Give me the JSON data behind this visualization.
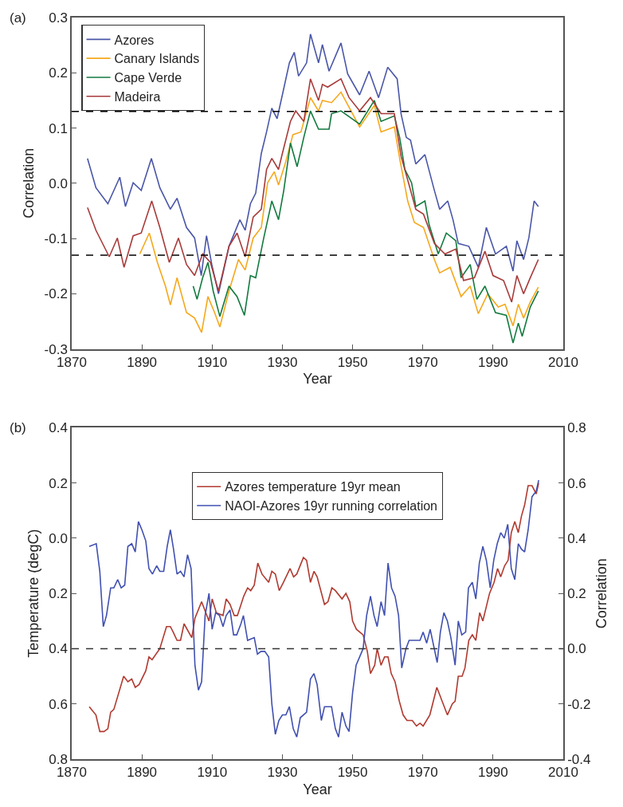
{
  "chart_data": [
    {
      "type": "line",
      "xlabel": "Year",
      "ylabel": "Correlation",
      "annotations": [
        "(a)"
      ],
      "xlim": [
        1870,
        2010
      ],
      "xticks": [
        1870,
        1890,
        1910,
        1930,
        1950,
        1970,
        1990,
        2010
      ],
      "ylim": [
        -0.3,
        0.3
      ],
      "yticks": [
        {
          "value": -0.3,
          "label": "-0.3"
        },
        {
          "value": -0.2,
          "label": "-0.2"
        },
        {
          "value": -0.1,
          "label": "-0.1"
        },
        {
          "value": 0,
          "label": "0.0"
        },
        {
          "value": 0.1,
          "label": "0.1"
        },
        {
          "value": 0.2,
          "label": "0.2"
        },
        {
          "value": 0.3,
          "label": "0.3"
        }
      ],
      "legend": "top left",
      "line_style": "solid",
      "marker": "none",
      "ref_lines": [
        {
          "axis": "y",
          "value": 0.13,
          "color": "#000000",
          "line_style": "dashed"
        },
        {
          "axis": "y",
          "value": -0.13,
          "color": "#000000",
          "line_style": "dashed"
        }
      ],
      "series": [
        {
          "name": "Azores",
          "color": "#4a56a8",
          "x": [
            1874.5,
            1876.9,
            1880.3,
            1883.7,
            1885.3,
            1887.5,
            1889.8,
            1892.7,
            1895.1,
            1898.1,
            1900,
            1902.7,
            1905,
            1906.9,
            1908.4,
            1909.9,
            1911.8,
            1914.8,
            1917.9,
            1919.4,
            1920.9,
            1922.4,
            1924,
            1925.5,
            1927,
            1928.5,
            1930,
            1932,
            1933.4,
            1934.6,
            1936.9,
            1938,
            1940.3,
            1941.4,
            1943.3,
            1946.7,
            1948.6,
            1952,
            1954.7,
            1957.4,
            1960,
            1962.7,
            1963.8,
            1965.3,
            1966.5,
            1968,
            1970.6,
            1973.3,
            1974.8,
            1977.1,
            1978.6,
            1980.1,
            1983.1,
            1985.8,
            1988.1,
            1990.7,
            1993.8,
            1995.7,
            1996.8,
            1998.7,
            2000.2,
            2001.7,
            2002.9
          ],
          "values": [
            0.045,
            -0.008,
            -0.037,
            0.011,
            -0.042,
            0.001,
            -0.013,
            0.045,
            -0.008,
            -0.047,
            -0.027,
            -0.08,
            -0.099,
            -0.167,
            -0.095,
            -0.147,
            -0.2,
            -0.114,
            -0.066,
            -0.085,
            -0.037,
            -0.018,
            0.054,
            0.093,
            0.136,
            0.117,
            0.16,
            0.218,
            0.237,
            0.194,
            0.218,
            0.27,
            0.218,
            0.251,
            0.203,
            0.254,
            0.198,
            0.16,
            0.203,
            0.155,
            0.21,
            0.189,
            0.126,
            0.083,
            0.078,
            0.035,
            0.052,
            -0.013,
            -0.047,
            -0.032,
            -0.066,
            -0.109,
            -0.114,
            -0.152,
            -0.08,
            -0.128,
            -0.114,
            -0.159,
            -0.104,
            -0.138,
            -0.099,
            -0.032,
            -0.042
          ]
        },
        {
          "name": "Canary Islands",
          "color": "#f5a81c",
          "x": [
            1889.4,
            1892.1,
            1894.4,
            1896.7,
            1898.1,
            1900,
            1902.7,
            1905,
            1907,
            1908.8,
            1910.7,
            1912.2,
            1914.8,
            1917.5,
            1919.4,
            1921.7,
            1924,
            1925.8,
            1927.7,
            1928.9,
            1930.8,
            1933,
            1935.3,
            1938,
            1940.3,
            1941.4,
            1944,
            1946.7,
            1952,
            1956.2,
            1958.1,
            1961.9,
            1963.4,
            1965.7,
            1967.6,
            1970.2,
            1973.3,
            1974.8,
            1977.8,
            1980.9,
            1983.5,
            1985.8,
            1988.5,
            1991.5,
            1993.4,
            1995.7,
            1997.2,
            1998.7,
            2000.6,
            2002.9
          ],
          "values": [
            -0.128,
            -0.09,
            -0.143,
            -0.186,
            -0.22,
            -0.171,
            -0.234,
            -0.244,
            -0.27,
            -0.205,
            -0.234,
            -0.26,
            -0.195,
            -0.138,
            -0.157,
            -0.099,
            -0.08,
            0.001,
            0.021,
            -0.003,
            0.035,
            0.088,
            0.093,
            0.155,
            0.131,
            0.15,
            0.146,
            0.165,
            0.102,
            0.141,
            0.093,
            0.102,
            0.045,
            -0.032,
            -0.071,
            -0.08,
            -0.138,
            -0.162,
            -0.152,
            -0.205,
            -0.186,
            -0.236,
            -0.2,
            -0.224,
            -0.219,
            -0.258,
            -0.219,
            -0.244,
            -0.215,
            -0.188
          ]
        },
        {
          "name": "Cape Verde",
          "color": "#127a3e",
          "x": [
            1904.6,
            1905.7,
            1907.3,
            1908.8,
            1910.3,
            1912.2,
            1914.8,
            1917.1,
            1919.2,
            1920.9,
            1922.4,
            1924.7,
            1927,
            1928.9,
            1930.4,
            1932.3,
            1934.2,
            1936.1,
            1938,
            1940.3,
            1943.3,
            1944,
            1946.7,
            1952,
            1956.2,
            1958.1,
            1961.9,
            1963.4,
            1964.9,
            1966.8,
            1968,
            1970.6,
            1971.8,
            1974.4,
            1976.7,
            1979.4,
            1980.9,
            1983.5,
            1985.4,
            1987.7,
            1990.7,
            1993.8,
            1995.7,
            1997.2,
            1998.3,
            2000.6,
            2002.9
          ],
          "values": [
            -0.186,
            -0.21,
            -0.171,
            -0.143,
            -0.195,
            -0.241,
            -0.186,
            -0.205,
            -0.239,
            -0.167,
            -0.171,
            -0.099,
            -0.032,
            -0.066,
            -0.013,
            0.073,
            0.03,
            0.083,
            0.131,
            0.098,
            0.098,
            0.126,
            0.131,
            0.107,
            0.15,
            0.112,
            0.122,
            0.083,
            0.025,
            0.001,
            -0.042,
            -0.032,
            -0.075,
            -0.128,
            -0.09,
            -0.104,
            -0.171,
            -0.147,
            -0.21,
            -0.186,
            -0.234,
            -0.239,
            -0.289,
            -0.253,
            -0.277,
            -0.224,
            -0.195
          ]
        },
        {
          "name": "Madeira",
          "color": "#a83a3a",
          "x": [
            1874.5,
            1876.9,
            1880.7,
            1883,
            1884.9,
            1887.5,
            1889.8,
            1892.8,
            1895.1,
            1897.8,
            1900.4,
            1902.7,
            1905,
            1907.3,
            1909.5,
            1911.8,
            1914.8,
            1917.1,
            1919.4,
            1921.7,
            1924,
            1925.5,
            1927,
            1928.9,
            1930,
            1932.3,
            1933.8,
            1936.1,
            1938,
            1940.3,
            1941.4,
            1942.9,
            1946.7,
            1949,
            1952,
            1955.1,
            1958.1,
            1961.9,
            1963.8,
            1966.1,
            1968,
            1970.2,
            1973.3,
            1976.3,
            1979.4,
            1981.6,
            1984.7,
            1987.7,
            1990,
            1993,
            1995.3,
            1996.8,
            1998.7,
            2000.6,
            2002.9
          ],
          "values": [
            -0.044,
            -0.085,
            -0.133,
            -0.099,
            -0.152,
            -0.095,
            -0.09,
            -0.032,
            -0.08,
            -0.143,
            -0.099,
            -0.147,
            -0.167,
            -0.128,
            -0.143,
            -0.195,
            -0.114,
            -0.09,
            -0.133,
            -0.061,
            -0.047,
            0.025,
            0.045,
            0.025,
            0.054,
            0.112,
            0.131,
            0.112,
            0.189,
            0.15,
            0.179,
            0.174,
            0.189,
            0.155,
            0.131,
            0.155,
            0.126,
            0.126,
            0.049,
            -0.003,
            -0.047,
            -0.056,
            -0.109,
            -0.128,
            -0.119,
            -0.176,
            -0.171,
            -0.123,
            -0.167,
            -0.176,
            -0.215,
            -0.167,
            -0.2,
            -0.171,
            -0.138
          ]
        }
      ]
    },
    {
      "type": "line",
      "xlabel": "Year",
      "ylabel": "Temperature (degC)",
      "y2label": "Correlation",
      "annotations": [
        "(b)"
      ],
      "xlim": [
        1870,
        2010
      ],
      "xticks": [
        1870,
        1890,
        1910,
        1930,
        1950,
        1970,
        1990,
        2010
      ],
      "ylim": [
        -0.8,
        0.4
      ],
      "yticks": [
        {
          "value": -0.8,
          "label": "0.8"
        },
        {
          "value": -0.6,
          "label": "0.6"
        },
        {
          "value": -0.4,
          "label": "0.4"
        },
        {
          "value": -0.2,
          "label": "0.2"
        },
        {
          "value": 0,
          "label": "0.0"
        },
        {
          "value": 0.2,
          "label": "0.2"
        },
        {
          "value": 0.4,
          "label": "0.4"
        }
      ],
      "y2lim": [
        -0.4,
        0.8
      ],
      "y2ticks": [
        -0.4,
        -0.2,
        {
          "value": 0,
          "label": "0.0"
        },
        0.2,
        0.4,
        0.6,
        0.8
      ],
      "legend": "top",
      "line_style": "solid",
      "marker": "none",
      "ref_lines": [
        {
          "axis": "y2",
          "value": 0,
          "color": "#333333",
          "line_style": "dashed"
        }
      ],
      "series": [
        {
          "name": "Azores temperature 19yr mean",
          "color": "#b03a30",
          "x": [
            1875,
            1876.9,
            1878,
            1879.2,
            1880.3,
            1881.1,
            1882,
            1884.8,
            1886,
            1887.1,
            1888.1,
            1889.2,
            1891.1,
            1892,
            1892.9,
            1895.1,
            1897,
            1898.1,
            1898.9,
            1900,
            1901,
            1902,
            1904.2,
            1905.1,
            1907,
            1909.1,
            1910,
            1911.2,
            1913.1,
            1914,
            1915.1,
            1916.3,
            1917.2,
            1919,
            1920.1,
            1921,
            1922,
            1923,
            1924.2,
            1926.1,
            1927,
            1928,
            1929.1,
            1930.3,
            1932.2,
            1933.2,
            1934.1,
            1936,
            1936.9,
            1938,
            1939,
            1939.9,
            1942,
            1943,
            1944.1,
            1945.1,
            1947,
            1948.1,
            1949.2,
            1950,
            1951.1,
            1953,
            1954.2,
            1955.1,
            1956.3,
            1957,
            1958.1,
            1959.1,
            1960.1,
            1961,
            1962.1,
            1963.3,
            1964.4,
            1965.5,
            1967,
            1968.2,
            1969.2,
            1970.1,
            1972,
            1974,
            1975.5,
            1977,
            1978.4,
            1979.2,
            1980.1,
            1981.2,
            1982,
            1983.1,
            1984.1,
            1985.1,
            1986.2,
            1987.1,
            1989,
            1990.3,
            1991.3,
            1992.2,
            1993.3,
            1994.3,
            1995.2,
            1996.2,
            1997.2,
            1998.1,
            1999,
            2000,
            2001.1,
            2002.3,
            2003
          ],
          "values": [
            -0.61,
            -0.64,
            -0.7,
            -0.7,
            -0.69,
            -0.63,
            -0.62,
            -0.5,
            -0.52,
            -0.51,
            -0.54,
            -0.53,
            -0.48,
            -0.43,
            -0.44,
            -0.4,
            -0.32,
            -0.32,
            -0.34,
            -0.37,
            -0.37,
            -0.31,
            -0.36,
            -0.29,
            -0.23,
            -0.3,
            -0.22,
            -0.27,
            -0.28,
            -0.22,
            -0.24,
            -0.28,
            -0.28,
            -0.21,
            -0.18,
            -0.19,
            -0.17,
            -0.09,
            -0.13,
            -0.16,
            -0.12,
            -0.13,
            -0.19,
            -0.16,
            -0.11,
            -0.14,
            -0.13,
            -0.07,
            -0.08,
            -0.16,
            -0.12,
            -0.14,
            -0.24,
            -0.23,
            -0.18,
            -0.19,
            -0.22,
            -0.2,
            -0.23,
            -0.3,
            -0.33,
            -0.35,
            -0.41,
            -0.49,
            -0.46,
            -0.4,
            -0.46,
            -0.43,
            -0.43,
            -0.49,
            -0.52,
            -0.59,
            -0.64,
            -0.66,
            -0.66,
            -0.68,
            -0.67,
            -0.68,
            -0.64,
            -0.54,
            -0.59,
            -0.64,
            -0.6,
            -0.59,
            -0.5,
            -0.5,
            -0.47,
            -0.37,
            -0.35,
            -0.37,
            -0.27,
            -0.3,
            -0.2,
            -0.16,
            -0.11,
            -0.14,
            -0.1,
            -0.08,
            0.02,
            0.06,
            0.02,
            0.08,
            0.12,
            0.19,
            0.19,
            0.16,
            0.2
          ]
        },
        {
          "name": "NAOI-Azores 19yr running correlation",
          "color": "#4050b0",
          "axis": "y2",
          "x": [
            1875,
            1877,
            1878,
            1879,
            1879.9,
            1881.1,
            1882,
            1883.1,
            1884.1,
            1885.1,
            1886,
            1887.1,
            1888.1,
            1889,
            1890,
            1891.1,
            1892,
            1893,
            1894.2,
            1895.1,
            1896.2,
            1897.2,
            1898.1,
            1899,
            1900,
            1901,
            1902,
            1903,
            1904,
            1905.1,
            1906.1,
            1907,
            1908,
            1909.1,
            1910,
            1911,
            1912.1,
            1913.1,
            1914,
            1915.1,
            1916.1,
            1917,
            1918.2,
            1918.9,
            1920.1,
            1922,
            1922.9,
            1923.9,
            1925,
            1926.1,
            1927,
            1928,
            1929,
            1930,
            1931,
            1932,
            1933.1,
            1934.1,
            1935.1,
            1936.9,
            1938,
            1939,
            1939.9,
            1941.1,
            1942,
            1943,
            1944,
            1945.1,
            1946,
            1947,
            1948.1,
            1949,
            1950,
            1951,
            1952,
            1953,
            1954,
            1955.1,
            1956.1,
            1957,
            1958.1,
            1959.1,
            1960.1,
            1961.1,
            1962.1,
            1963.1,
            1964,
            1965.2,
            1966.1,
            1967.2,
            1968.2,
            1969.2,
            1970.1,
            1971.1,
            1972.1,
            1973.1,
            1974.1,
            1975,
            1976,
            1977,
            1978,
            1979.2,
            1980.1,
            1981.1,
            1982.2,
            1983,
            1984.1,
            1985.1,
            1986.1,
            1987.1,
            1988.1,
            1989.2,
            1990.2,
            1991.2,
            1992.2,
            1993.2,
            1994.2,
            1995.2,
            1996.2,
            1997.2,
            1998.1,
            1999,
            2000,
            2001.1,
            2002.3,
            2003
          ],
          "values": [
            0.37,
            0.38,
            0.28,
            0.08,
            0.12,
            0.22,
            0.22,
            0.25,
            0.22,
            0.23,
            0.37,
            0.38,
            0.35,
            0.46,
            0.43,
            0.39,
            0.29,
            0.27,
            0.3,
            0.28,
            0.28,
            0.37,
            0.43,
            0.36,
            0.27,
            0.28,
            0.26,
            0.34,
            0.29,
            -0.06,
            -0.15,
            -0.12,
            0.12,
            0.2,
            0.07,
            0.13,
            0.12,
            0.08,
            0.12,
            0.14,
            0.05,
            0.05,
            0.09,
            0.12,
            0.03,
            0.04,
            -0.02,
            -0.01,
            -0.01,
            -0.03,
            -0.2,
            -0.31,
            -0.26,
            -0.24,
            -0.24,
            -0.21,
            -0.29,
            -0.32,
            -0.25,
            -0.23,
            -0.11,
            -0.09,
            -0.13,
            -0.26,
            -0.21,
            -0.21,
            -0.21,
            -0.29,
            -0.32,
            -0.23,
            -0.28,
            -0.3,
            -0.16,
            -0.06,
            -0.03,
            0.0,
            0.12,
            0.19,
            0.12,
            0.08,
            0.17,
            0.12,
            0.31,
            0.22,
            0.19,
            0.12,
            -0.07,
            0.0,
            0.03,
            0.03,
            0.03,
            0.03,
            0.06,
            0.02,
            0.07,
            0.01,
            -0.05,
            0.06,
            0.13,
            0.1,
            0.04,
            -0.06,
            0.1,
            0.05,
            0.06,
            0.22,
            0.24,
            0.18,
            0.31,
            0.37,
            0.32,
            0.22,
            0.32,
            0.38,
            0.42,
            0.4,
            0.45,
            0.29,
            0.25,
            0.38,
            0.36,
            0.35,
            0.43,
            0.55,
            0.57,
            0.61
          ]
        }
      ]
    }
  ]
}
